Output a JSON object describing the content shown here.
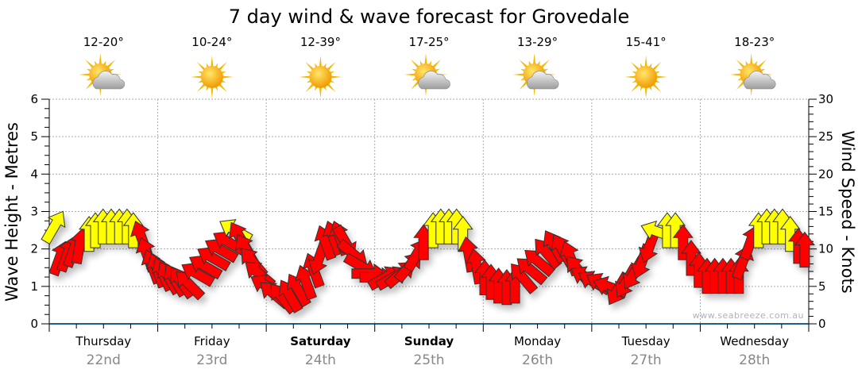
{
  "chart_data": {
    "type": "scatter",
    "title": "7 day wind & wave forecast for Grovedale",
    "ylabel": "Wave Height - Metres",
    "y2label": "Wind Speed - Knots",
    "ylim": [
      0,
      6
    ],
    "y2lim": [
      0,
      30
    ],
    "yticks": [
      "0",
      "1",
      "2",
      "3",
      "4",
      "5",
      "6"
    ],
    "y2ticks": [
      "0",
      "5",
      "10",
      "15",
      "20",
      "25",
      "30"
    ],
    "x_hours": 168,
    "grid": true,
    "watermark": "www.seabreeze.com.au",
    "days": [
      {
        "name": "Thursday",
        "date": "22nd",
        "temp": "12-20°",
        "icon": "partly-cloudy",
        "bold": false
      },
      {
        "name": "Friday",
        "date": "23rd",
        "temp": "10-24°",
        "icon": "sunny",
        "bold": false
      },
      {
        "name": "Saturday",
        "date": "24th",
        "temp": "12-39°",
        "icon": "sunny",
        "bold": true
      },
      {
        "name": "Sunday",
        "date": "25th",
        "temp": "17-25°",
        "icon": "partly-cloudy",
        "bold": true
      },
      {
        "name": "Monday",
        "date": "26th",
        "temp": "13-29°",
        "icon": "partly-cloudy",
        "bold": false
      },
      {
        "name": "Tuesday",
        "date": "27th",
        "temp": "15-41°",
        "icon": "sunny",
        "bold": false
      },
      {
        "name": "Wednesday",
        "date": "28th",
        "temp": "18-23°",
        "icon": "partly-cloudy",
        "bold": false
      }
    ],
    "colors": {
      "Y": "#ffff00",
      "R": "#ff0000",
      "axis": "#1f5f8b",
      "grid": "#aaaaaa"
    },
    "wind_fields": [
      "hour",
      "knots",
      "direction_deg",
      "color"
    ],
    "wind": [
      [
        1.1,
        13.0,
        30,
        "Y"
      ],
      [
        2.3,
        8.8,
        20,
        "R"
      ],
      [
        4.0,
        9.3,
        20,
        "R"
      ],
      [
        5.4,
        9.9,
        20,
        "R"
      ],
      [
        6.7,
        10.4,
        10,
        "R"
      ],
      [
        8.8,
        12.0,
        0,
        "Y"
      ],
      [
        10.2,
        12.5,
        0,
        "Y"
      ],
      [
        11.9,
        13.0,
        0,
        "Y"
      ],
      [
        13.7,
        13.0,
        0,
        "Y"
      ],
      [
        15.5,
        13.0,
        0,
        "Y"
      ],
      [
        17.2,
        13.0,
        0,
        "Y"
      ],
      [
        18.6,
        12.5,
        0,
        "Y"
      ],
      [
        20.4,
        11.5,
        -20,
        "R"
      ],
      [
        21.6,
        9.3,
        -20,
        "R"
      ],
      [
        22.8,
        7.7,
        -20,
        "R"
      ],
      [
        23.9,
        7.2,
        -20,
        "R"
      ],
      [
        25.1,
        6.7,
        -25,
        "R"
      ],
      [
        26.4,
        6.2,
        -30,
        "R"
      ],
      [
        27.8,
        5.9,
        -30,
        "R"
      ],
      [
        29.2,
        5.6,
        -35,
        "R"
      ],
      [
        30.9,
        5.3,
        -45,
        "R"
      ],
      [
        32.7,
        6.7,
        -60,
        "R"
      ],
      [
        34.4,
        7.7,
        -60,
        "R"
      ],
      [
        36.2,
        8.8,
        -60,
        "R"
      ],
      [
        37.9,
        9.9,
        -60,
        "R"
      ],
      [
        39.7,
        10.9,
        -60,
        "R"
      ],
      [
        41.1,
        12.5,
        -60,
        "Y"
      ],
      [
        42.2,
        11.5,
        -30,
        "R"
      ],
      [
        43.6,
        9.9,
        -30,
        "R"
      ],
      [
        45.0,
        8.3,
        -40,
        "R"
      ],
      [
        46.4,
        6.7,
        -50,
        "R"
      ],
      [
        48.0,
        5.1,
        -60,
        "R"
      ],
      [
        49.7,
        4.0,
        -50,
        "R"
      ],
      [
        51.5,
        3.5,
        -40,
        "R"
      ],
      [
        53.2,
        3.8,
        -30,
        "R"
      ],
      [
        55.0,
        4.6,
        -30,
        "R"
      ],
      [
        56.8,
        5.6,
        -20,
        "R"
      ],
      [
        58.5,
        7.2,
        -20,
        "R"
      ],
      [
        59.7,
        8.8,
        200,
        "R"
      ],
      [
        61.1,
        10.9,
        -20,
        "R"
      ],
      [
        62.9,
        11.5,
        -20,
        "R"
      ],
      [
        64.3,
        11.5,
        -20,
        "R"
      ],
      [
        65.5,
        10.9,
        150,
        "R"
      ],
      [
        67.3,
        9.3,
        130,
        "R"
      ],
      [
        69.0,
        7.7,
        120,
        "R"
      ],
      [
        70.8,
        6.7,
        90,
        "R"
      ],
      [
        72.6,
        6.2,
        90,
        "R"
      ],
      [
        74.3,
        6.2,
        60,
        "R"
      ],
      [
        76.1,
        6.2,
        60,
        "R"
      ],
      [
        77.8,
        6.7,
        50,
        "R"
      ],
      [
        79.6,
        7.7,
        40,
        "R"
      ],
      [
        81.3,
        9.3,
        30,
        "R"
      ],
      [
        82.8,
        10.9,
        0,
        "R"
      ],
      [
        84.9,
        12.5,
        0,
        "Y"
      ],
      [
        86.6,
        13.0,
        0,
        "Y"
      ],
      [
        88.4,
        13.0,
        0,
        "Y"
      ],
      [
        90.1,
        13.0,
        0,
        "Y"
      ],
      [
        91.5,
        12.0,
        0,
        "Y"
      ],
      [
        92.8,
        9.3,
        -10,
        "R"
      ],
      [
        94.5,
        7.7,
        -10,
        "R"
      ],
      [
        96.3,
        6.2,
        0,
        "R"
      ],
      [
        97.7,
        5.6,
        0,
        "R"
      ],
      [
        99.4,
        5.1,
        0,
        "R"
      ],
      [
        101.2,
        4.9,
        0,
        "R"
      ],
      [
        103.0,
        5.1,
        0,
        "R"
      ],
      [
        104.7,
        6.2,
        -40,
        "R"
      ],
      [
        106.5,
        7.2,
        -50,
        "R"
      ],
      [
        108.2,
        8.3,
        -50,
        "R"
      ],
      [
        110.0,
        9.5,
        -40,
        "R"
      ],
      [
        111.7,
        10.4,
        -30,
        "R"
      ],
      [
        113.5,
        9.9,
        -30,
        "R"
      ],
      [
        115.3,
        8.8,
        -20,
        "R"
      ],
      [
        117.0,
        7.2,
        -40,
        "R"
      ],
      [
        118.8,
        6.2,
        -60,
        "R"
      ],
      [
        120.5,
        5.6,
        -60,
        "R"
      ],
      [
        122.3,
        5.3,
        -60,
        "R"
      ],
      [
        124.0,
        4.9,
        -70,
        "R"
      ],
      [
        125.8,
        4.6,
        210,
        "R"
      ],
      [
        127.6,
        5.6,
        210,
        "R"
      ],
      [
        129.3,
        6.7,
        210,
        "R"
      ],
      [
        131.1,
        8.3,
        200,
        "R"
      ],
      [
        132.8,
        10.4,
        200,
        "R"
      ],
      [
        134.6,
        12.3,
        -70,
        "Y"
      ],
      [
        136.7,
        12.5,
        0,
        "Y"
      ],
      [
        138.5,
        12.5,
        0,
        "Y"
      ],
      [
        140.2,
        10.9,
        0,
        "R"
      ],
      [
        142.0,
        8.8,
        0,
        "R"
      ],
      [
        143.7,
        7.2,
        0,
        "R"
      ],
      [
        145.5,
        6.4,
        0,
        "R"
      ],
      [
        147.2,
        6.4,
        0,
        "R"
      ],
      [
        149.0,
        6.4,
        0,
        "R"
      ],
      [
        150.8,
        6.4,
        0,
        "R"
      ],
      [
        152.5,
        6.4,
        0,
        "R"
      ],
      [
        153.4,
        8.3,
        20,
        "R"
      ],
      [
        155.1,
        10.9,
        20,
        "R"
      ],
      [
        156.9,
        12.5,
        0,
        "Y"
      ],
      [
        158.7,
        13.0,
        0,
        "Y"
      ],
      [
        160.4,
        13.0,
        0,
        "Y"
      ],
      [
        162.2,
        13.0,
        0,
        "Y"
      ],
      [
        163.9,
        12.0,
        0,
        "Y"
      ],
      [
        165.7,
        10.4,
        0,
        "R"
      ],
      [
        167.1,
        9.9,
        0,
        "R"
      ]
    ]
  }
}
